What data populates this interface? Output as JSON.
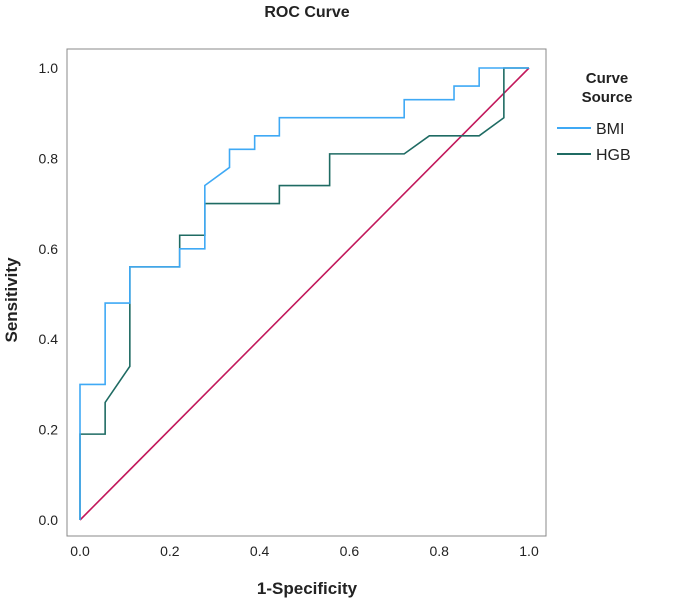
{
  "chart_data": {
    "type": "line",
    "title": "ROC Curve",
    "xlabel": "1-Specificity",
    "ylabel": "Sensitivity",
    "xlim": [
      0,
      1
    ],
    "ylim": [
      0,
      1
    ],
    "xticks": [
      "0.0",
      "0.2",
      "0.4",
      "0.6",
      "0.8",
      "1.0"
    ],
    "yticks": [
      "0.0",
      "0.2",
      "0.4",
      "0.6",
      "0.8",
      "1.0"
    ],
    "grid": false,
    "legend": {
      "title_line1": "Curve",
      "title_line2": "Source",
      "placement": "right"
    },
    "series": [
      {
        "name": "BMI",
        "color": "#3fa9f5",
        "points": [
          [
            0,
            0
          ],
          [
            0,
            0.3
          ],
          [
            0.056,
            0.3
          ],
          [
            0.056,
            0.48
          ],
          [
            0.111,
            0.48
          ],
          [
            0.111,
            0.56
          ],
          [
            0.222,
            0.56
          ],
          [
            0.222,
            0.6
          ],
          [
            0.278,
            0.6
          ],
          [
            0.278,
            0.74
          ],
          [
            0.333,
            0.78
          ],
          [
            0.333,
            0.82
          ],
          [
            0.389,
            0.82
          ],
          [
            0.389,
            0.85
          ],
          [
            0.444,
            0.85
          ],
          [
            0.444,
            0.89
          ],
          [
            0.722,
            0.89
          ],
          [
            0.722,
            0.93
          ],
          [
            0.833,
            0.93
          ],
          [
            0.833,
            0.96
          ],
          [
            0.889,
            0.96
          ],
          [
            0.889,
            1.0
          ],
          [
            1.0,
            1.0
          ]
        ]
      },
      {
        "name": "HGB",
        "color": "#1f6b63",
        "points": [
          [
            0,
            0
          ],
          [
            0,
            0.19
          ],
          [
            0.056,
            0.19
          ],
          [
            0.056,
            0.26
          ],
          [
            0.111,
            0.34
          ],
          [
            0.111,
            0.56
          ],
          [
            0.222,
            0.56
          ],
          [
            0.222,
            0.63
          ],
          [
            0.278,
            0.63
          ],
          [
            0.278,
            0.7
          ],
          [
            0.444,
            0.7
          ],
          [
            0.444,
            0.74
          ],
          [
            0.556,
            0.74
          ],
          [
            0.556,
            0.81
          ],
          [
            0.722,
            0.81
          ],
          [
            0.778,
            0.85
          ],
          [
            0.889,
            0.85
          ],
          [
            0.944,
            0.89
          ],
          [
            0.944,
            1.0
          ],
          [
            1.0,
            1.0
          ]
        ]
      },
      {
        "name": "Reference Line",
        "color": "#c2185b",
        "legend": false,
        "points": [
          [
            0,
            0
          ],
          [
            1,
            1
          ]
        ]
      }
    ]
  }
}
